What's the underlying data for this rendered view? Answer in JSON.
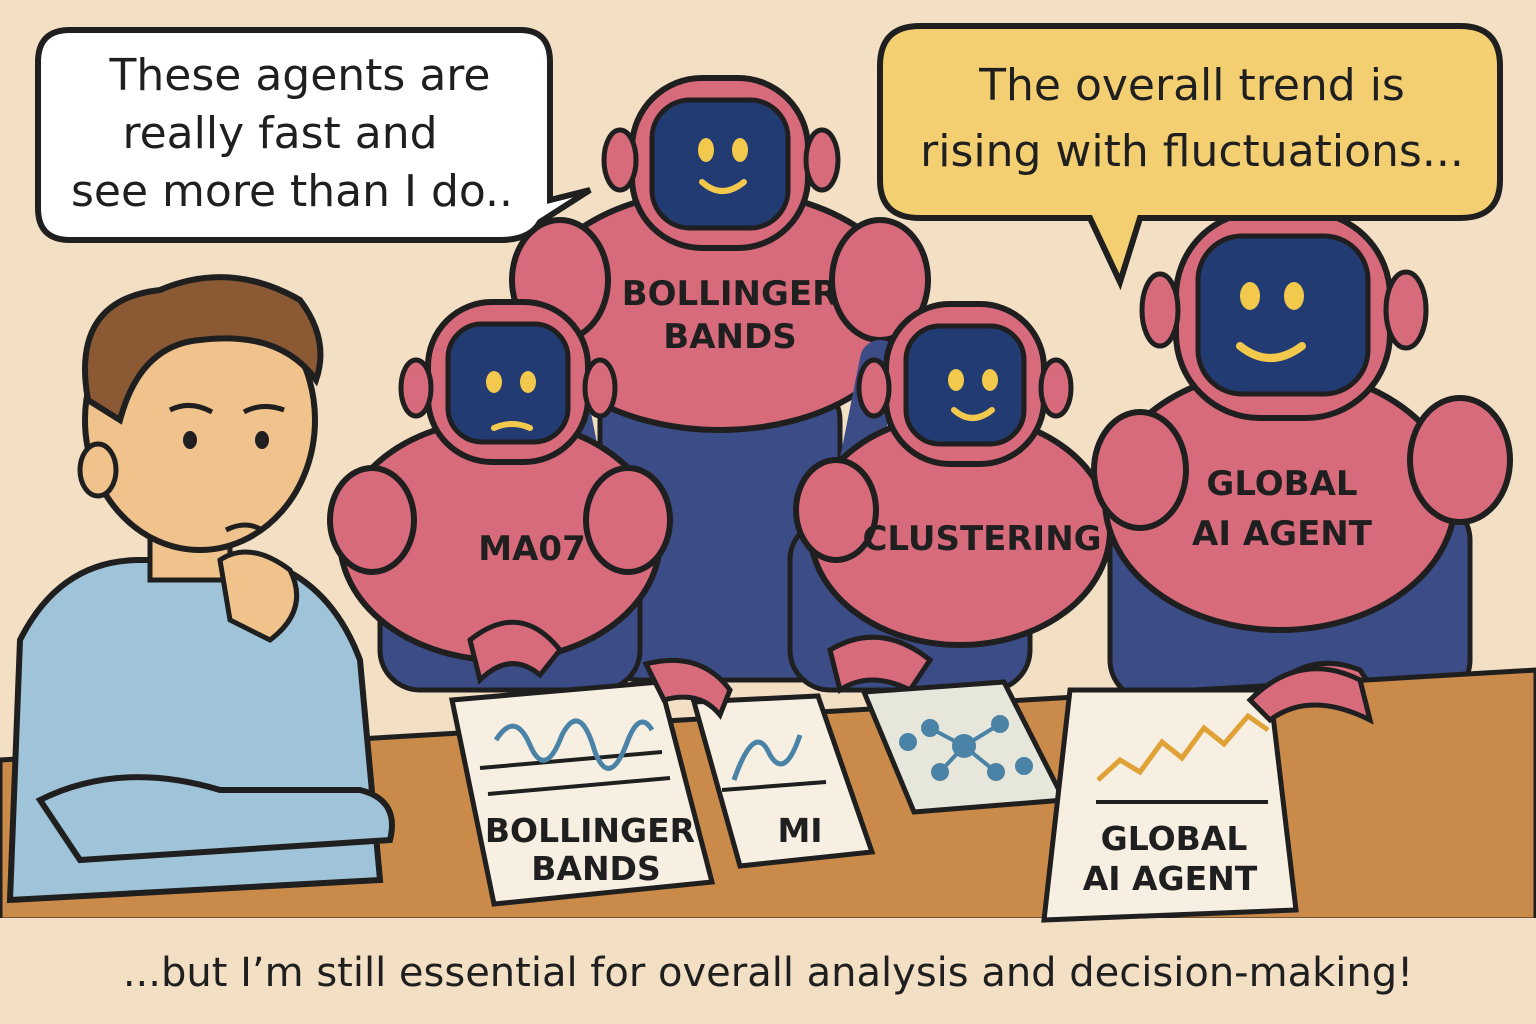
{
  "bubbles": {
    "left": {
      "lines": [
        "These agents are",
        "really fast and",
        "see more than I do.."
      ]
    },
    "right": {
      "lines": [
        "The overall trend is",
        "rising with fluctuations..."
      ]
    }
  },
  "robots": {
    "ma07": "MA07",
    "bollinger": [
      "BOLLINGER",
      "BANDS"
    ],
    "clustering": "CLUSTERING",
    "global": [
      "GLOBAL",
      "AI AGENT"
    ]
  },
  "cards": {
    "bollinger": [
      "BOLLINGER",
      "BANDS"
    ],
    "mi": "MI",
    "global": [
      "GLOBAL",
      "AI AGENT"
    ]
  },
  "caption": "...but I’m still essential for overall analysis and decision-making!",
  "colors": {
    "background": "#f3dfc4",
    "table": "#c98a4a",
    "robot_body": "#d86b7b",
    "robot_joint": "#3b4c86",
    "robot_face": "#233b73",
    "robot_eyes": "#f2c94c",
    "right_bubble": "#f3cf72",
    "shirt": "#9fc3d8",
    "hair": "#8b5a34",
    "skin": "#f0c28c",
    "chart_line": "#4a83a6",
    "trend_line": "#e0a237"
  }
}
